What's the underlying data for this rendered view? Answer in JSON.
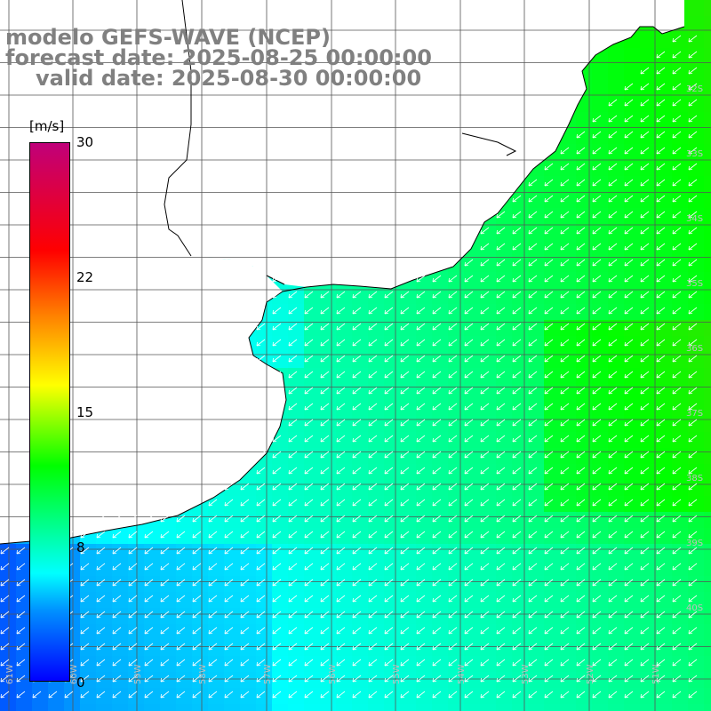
{
  "title": {
    "line1": "modelo GEFS-WAVE (NCEP)",
    "line2": "forecast date: 2025-08-25 00:00:00",
    "line3": "valid date: 2025-08-30 00:00:00"
  },
  "colorbar": {
    "units": "[m/s]",
    "min": 0,
    "max": 30,
    "ticks": [
      "30",
      "22",
      "15",
      "8",
      "0"
    ],
    "tick_values": [
      30,
      22,
      15,
      8,
      0
    ],
    "colors": [
      "#0000ff",
      "#0090ff",
      "#00ffff",
      "#00ff00",
      "#ffff00",
      "#ff8000",
      "#ff0000",
      "#c0007a"
    ]
  },
  "colors": {
    "land": "#ffffff",
    "coast": "#000000",
    "grid": "#555555",
    "arrows": "#ffffff",
    "title": "#808080"
  },
  "map": {
    "wind_direction": "from north-east",
    "latitude_labels": [
      "32S",
      "33S",
      "34S",
      "35S",
      "36S",
      "37S",
      "38S",
      "39S",
      "40S"
    ],
    "longitude_labels": [
      "61W",
      "60W",
      "59W",
      "58W",
      "57W",
      "56W",
      "55W",
      "54W",
      "53W",
      "52W",
      "51W"
    ]
  }
}
